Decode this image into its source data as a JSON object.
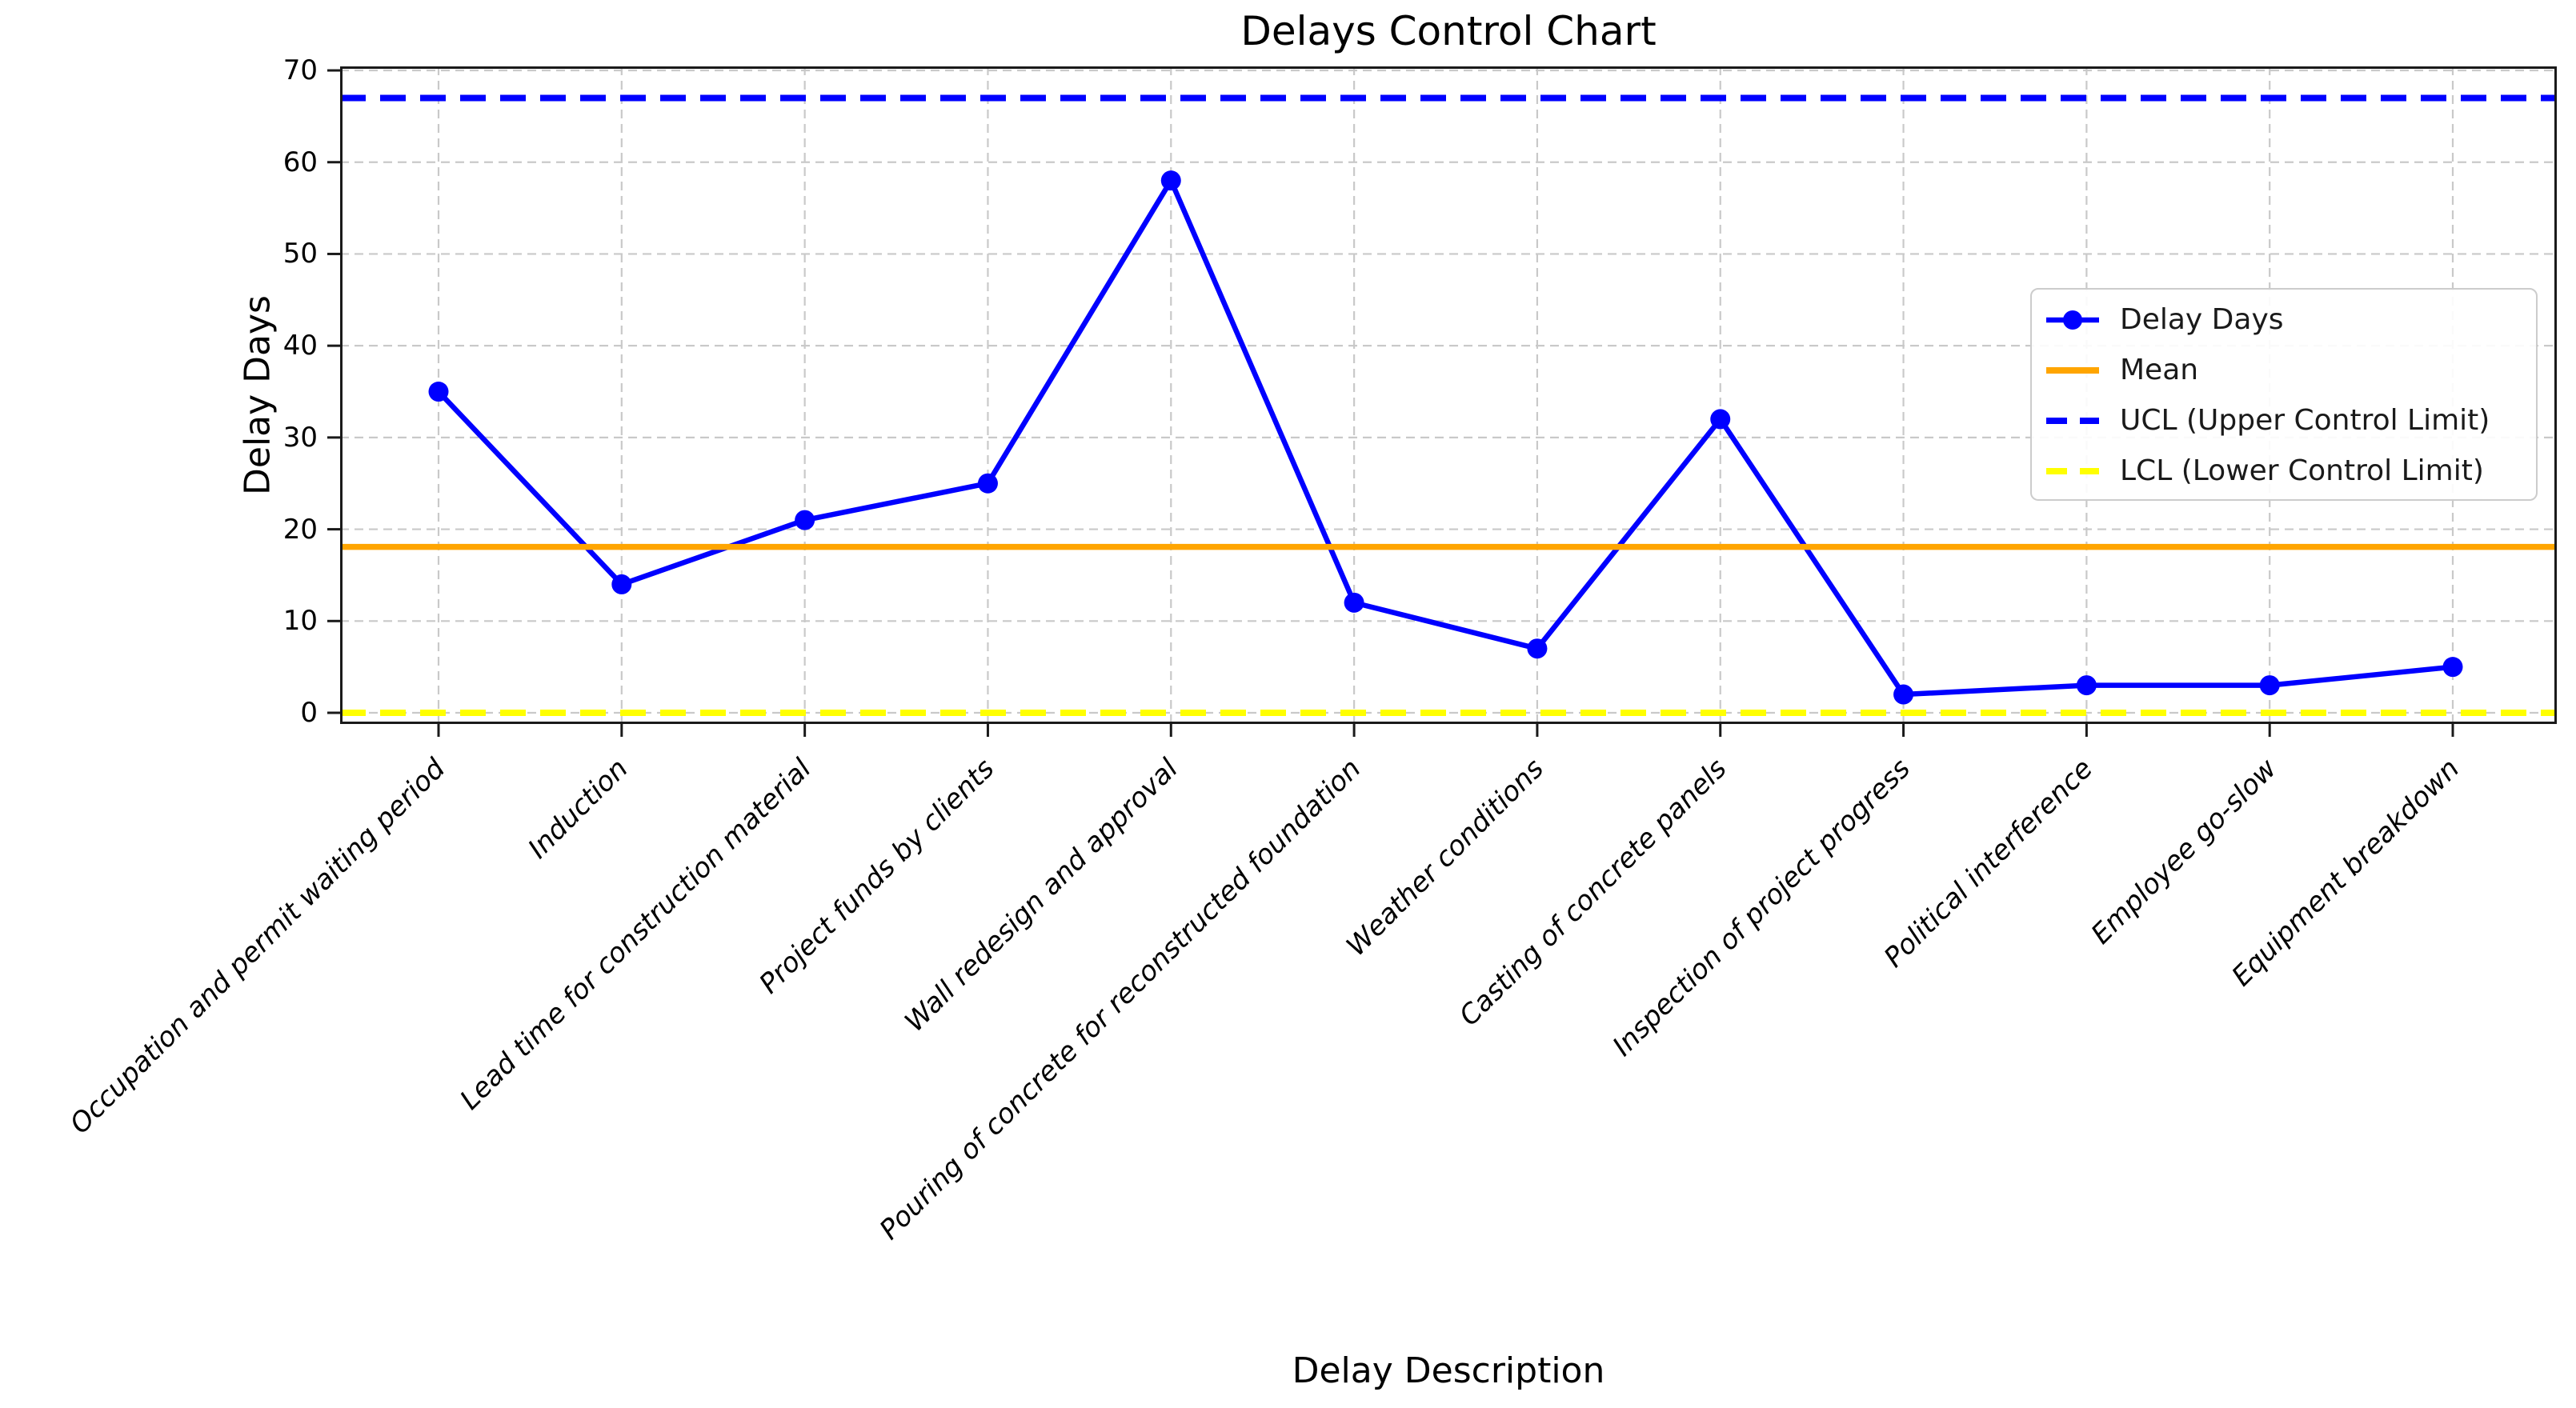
{
  "chart_data": {
    "type": "line",
    "title": "Delays Control Chart",
    "xlabel": "Delay Description",
    "ylabel": "Delay Days",
    "categories": [
      "Occupation and permit waiting period",
      "Induction",
      "Lead time for construction material",
      "Project funds by clients",
      "Wall redesign and approval",
      "Pouring of concrete for reconstructed foundation",
      "Weather conditions",
      "Casting of concrete panels",
      "Inspection of project progress",
      "Political interference",
      "Employee go-slow",
      "Equipment breakdown"
    ],
    "series": [
      {
        "name": "Delay Days",
        "values": [
          35,
          14,
          21,
          25,
          58,
          12,
          7,
          32,
          2,
          3,
          3,
          5
        ],
        "color": "#0000ff",
        "style": "solid-marker"
      }
    ],
    "reference_lines": [
      {
        "name": "Mean",
        "value": 18.08,
        "color": "#ffa500",
        "style": "solid"
      },
      {
        "name": "UCL (Upper Control Limit)",
        "value": 67.0,
        "color": "#0000ff",
        "style": "dashed"
      },
      {
        "name": "LCL (Lower Control Limit)",
        "value": 0.0,
        "color": "#ffff00",
        "style": "dashed"
      }
    ],
    "legend": [
      "Delay Days",
      "Mean",
      "UCL (Upper Control Limit)",
      "LCL (Lower Control Limit)"
    ],
    "legend_position": "upper right",
    "yticks": [
      0,
      10,
      20,
      30,
      40,
      50,
      60,
      70
    ],
    "ylim": [
      -1.2,
      70.9
    ],
    "grid": true,
    "grid_color": "#c9c9c9",
    "spine_color": "#1a1a1a"
  }
}
